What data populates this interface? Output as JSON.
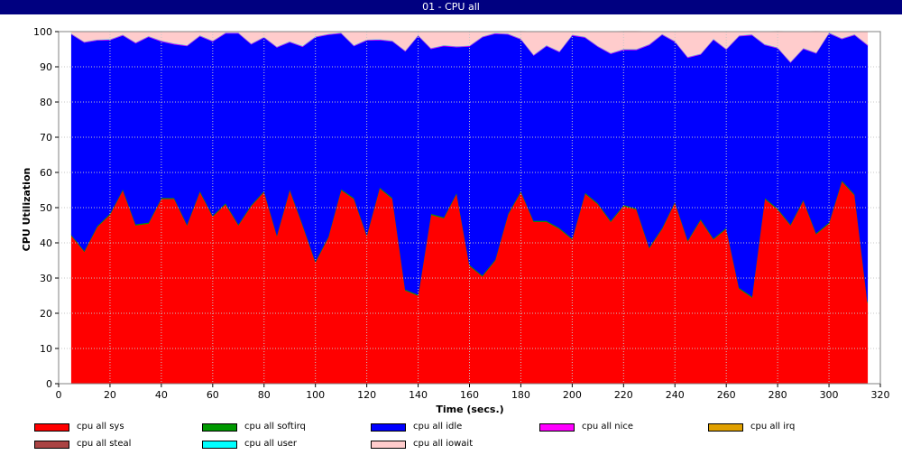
{
  "window": {
    "title": "01 - CPU all"
  },
  "chart_data": {
    "type": "area",
    "stacked": true,
    "title": "01 - CPU all",
    "xlabel": "Time (secs.)",
    "ylabel": "CPU Utilization",
    "xlim": [
      0,
      320
    ],
    "ylim": [
      0,
      100
    ],
    "x_ticks": [
      0,
      20,
      40,
      60,
      80,
      100,
      120,
      140,
      160,
      180,
      200,
      220,
      240,
      260,
      280,
      300,
      320
    ],
    "y_ticks": [
      0,
      10,
      20,
      30,
      40,
      50,
      60,
      70,
      80,
      90,
      100
    ],
    "grid": true,
    "legend_position": "bottom",
    "x": [
      5,
      10,
      15,
      20,
      25,
      30,
      35,
      40,
      45,
      50,
      55,
      60,
      65,
      70,
      75,
      80,
      85,
      90,
      95,
      100,
      105,
      110,
      115,
      120,
      125,
      130,
      135,
      140,
      145,
      150,
      155,
      160,
      165,
      170,
      175,
      180,
      185,
      190,
      195,
      200,
      205,
      210,
      215,
      220,
      225,
      230,
      235,
      240,
      245,
      250,
      255,
      260,
      265,
      270,
      275,
      280,
      285,
      290,
      295,
      300,
      305,
      310,
      315
    ],
    "series": [
      {
        "name": "cpu all sys",
        "color": "#ff0000",
        "values": [
          42,
          37.5,
          44.5,
          48,
          55,
          45,
          45.5,
          52.5,
          52.5,
          45,
          54.5,
          47.5,
          51,
          45,
          50.5,
          54.5,
          42,
          55,
          45,
          34.5,
          41.5,
          55,
          52.5,
          42,
          55.5,
          52.5,
          26.5,
          25,
          48,
          47,
          54,
          33.5,
          30.5,
          35,
          48,
          54.5,
          46,
          46,
          44,
          41,
          54,
          51,
          46,
          50.5,
          49.5,
          38.5,
          44,
          51.5,
          40.5,
          46.5,
          41,
          44,
          27,
          24.5,
          52.5,
          49.5,
          45,
          52,
          42.5,
          45.5,
          57.5,
          53.5,
          23
        ]
      },
      {
        "name": "cpu all softirq",
        "color": "#009900",
        "values": [
          0.3,
          0.3,
          0.3,
          0.3,
          0.3,
          0.3,
          0.3,
          0.3,
          0.3,
          0.3,
          0.3,
          0.3,
          0.3,
          0.3,
          0.3,
          0.3,
          0.3,
          0.3,
          0.3,
          0.3,
          0.3,
          0.3,
          0.3,
          0.3,
          0.3,
          0.3,
          0.3,
          0.3,
          0.3,
          0.3,
          0.3,
          0.3,
          0.3,
          0.3,
          0.3,
          0.3,
          0.3,
          0.3,
          0.3,
          0.3,
          0.3,
          0.3,
          0.3,
          0.3,
          0.3,
          0.3,
          0.3,
          0.3,
          0.3,
          0.3,
          0.3,
          0.3,
          0.3,
          0.3,
          0.3,
          0.3,
          0.3,
          0.3,
          0.3,
          0.3,
          0.3,
          0.3,
          0.3
        ]
      },
      {
        "name": "cpu all idle",
        "color": "#0000ff",
        "values": [
          56.9,
          59.1,
          52.7,
          49.3,
          43.6,
          51.4,
          52.7,
          44.4,
          43.6,
          50.6,
          43.9,
          49.4,
          48.2,
          54.2,
          45.6,
          43.5,
          53.2,
          41.7,
          50.4,
          63.6,
          57.3,
          44.2,
          43.1,
          55.2,
          41.8,
          44.4,
          67.6,
          73.5,
          46.8,
          48.6,
          41.3,
          62,
          67.6,
          64.1,
          50.9,
          43,
          46.9,
          49.6,
          49.9,
          57.6,
          44,
          44.4,
          47.4,
          44,
          45,
          57.4,
          54.8,
          45.3,
          51.8,
          46.7,
          56.4,
          50.6,
          71.4,
          74.2,
          43.4,
          45.5,
          45.9,
          42.8,
          51,
          53.7,
          40.1,
          45.2,
          72.8
        ]
      },
      {
        "name": "cpu all nice",
        "color": "#ff00ff",
        "values": [
          0.2,
          0.2,
          0.2,
          0.2,
          0.2,
          0.2,
          0.2,
          0.2,
          0.2,
          0.2,
          0.2,
          0.2,
          0.2,
          0.2,
          0.2,
          0.2,
          0.2,
          0.2,
          0.2,
          0.2,
          0.2,
          0.2,
          0.2,
          0.2,
          0.2,
          0.2,
          0.2,
          0.2,
          0.2,
          0.2,
          0.2,
          0.2,
          0.2,
          0.2,
          0.2,
          0.2,
          0.2,
          0.2,
          0.2,
          0.2,
          0.2,
          0.2,
          0.2,
          0.2,
          0.2,
          0.2,
          0.2,
          0.2,
          0.2,
          0.2,
          0.2,
          0.2,
          0.2,
          0.2,
          0.2,
          0.2,
          0.2,
          0.2,
          0.2,
          0.2,
          0.2,
          0.2,
          0.2
        ]
      },
      {
        "name": "cpu all irq",
        "color": "#e0a000",
        "values": [
          0,
          0,
          0,
          0,
          0,
          0,
          0,
          0,
          0,
          0,
          0,
          0,
          0,
          0,
          0,
          0,
          0,
          0,
          0,
          0,
          0,
          0,
          0,
          0,
          0,
          0,
          0,
          0,
          0,
          0,
          0,
          0,
          0,
          0,
          0,
          0,
          0,
          0,
          0,
          0,
          0,
          0,
          0,
          0,
          0,
          0,
          0,
          0,
          0,
          0,
          0,
          0,
          0,
          0,
          0,
          0,
          0,
          0,
          0,
          0,
          0,
          0,
          0
        ]
      },
      {
        "name": "cpu all steal",
        "color": "#aa4444",
        "values": [
          0,
          0,
          0,
          0,
          0,
          0,
          0,
          0,
          0,
          0,
          0,
          0,
          0,
          0,
          0,
          0,
          0,
          0,
          0,
          0,
          0,
          0,
          0,
          0,
          0,
          0,
          0,
          0,
          0,
          0,
          0,
          0,
          0,
          0,
          0,
          0,
          0,
          0,
          0,
          0,
          0,
          0,
          0,
          0,
          0,
          0,
          0,
          0,
          0,
          0,
          0,
          0,
          0,
          0,
          0,
          0,
          0,
          0,
          0,
          0,
          0,
          0,
          0
        ]
      },
      {
        "name": "cpu all user",
        "color": "#00ffff",
        "values": [
          0.1,
          0.1,
          0.1,
          0.1,
          0.1,
          0.1,
          0.1,
          0.1,
          0.1,
          0.1,
          0.1,
          0.1,
          0.1,
          0.1,
          0.1,
          0.1,
          0.1,
          0.1,
          0.1,
          0.1,
          0.1,
          0.1,
          0.1,
          0.1,
          0.1,
          0.1,
          0.1,
          0.1,
          0.1,
          0.1,
          0.1,
          0.1,
          0.1,
          0.1,
          0.1,
          0.1,
          0.1,
          0.1,
          0.1,
          0.1,
          0.1,
          0.1,
          0.1,
          0.1,
          0.1,
          0.1,
          0.1,
          0.1,
          0.1,
          0.1,
          0.1,
          0.1,
          0.1,
          0.1,
          0.1,
          0.1,
          0.1,
          0.1,
          0.1,
          0.1,
          0.1,
          0.1,
          0.1
        ]
      },
      {
        "name": "cpu all iowait",
        "color": "#ffcccc",
        "values": [
          0.5,
          2.8,
          2.2,
          2.1,
          0.8,
          2.9,
          1.2,
          2.5,
          3.3,
          3.8,
          1.1,
          2.5,
          0.2,
          0.2,
          3.3,
          1.4,
          4.2,
          2.7,
          3.8,
          1.3,
          0.6,
          0.2,
          3.8,
          2.2,
          2.1,
          2.5,
          5.3,
          0.9,
          4.6,
          3.8,
          4.1,
          3.9,
          1.3,
          0.3,
          0.5,
          2,
          6.5,
          3.8,
          5.5,
          0.8,
          1.4,
          3.9,
          6,
          5,
          5,
          3.5,
          0.6,
          2.6,
          7.1,
          6.2,
          1.9,
          4.8,
          1,
          0.8,
          3.5,
          4.5,
          8.5,
          4.6,
          6,
          0.2,
          1.8,
          0.7,
          3.6
        ]
      }
    ]
  }
}
